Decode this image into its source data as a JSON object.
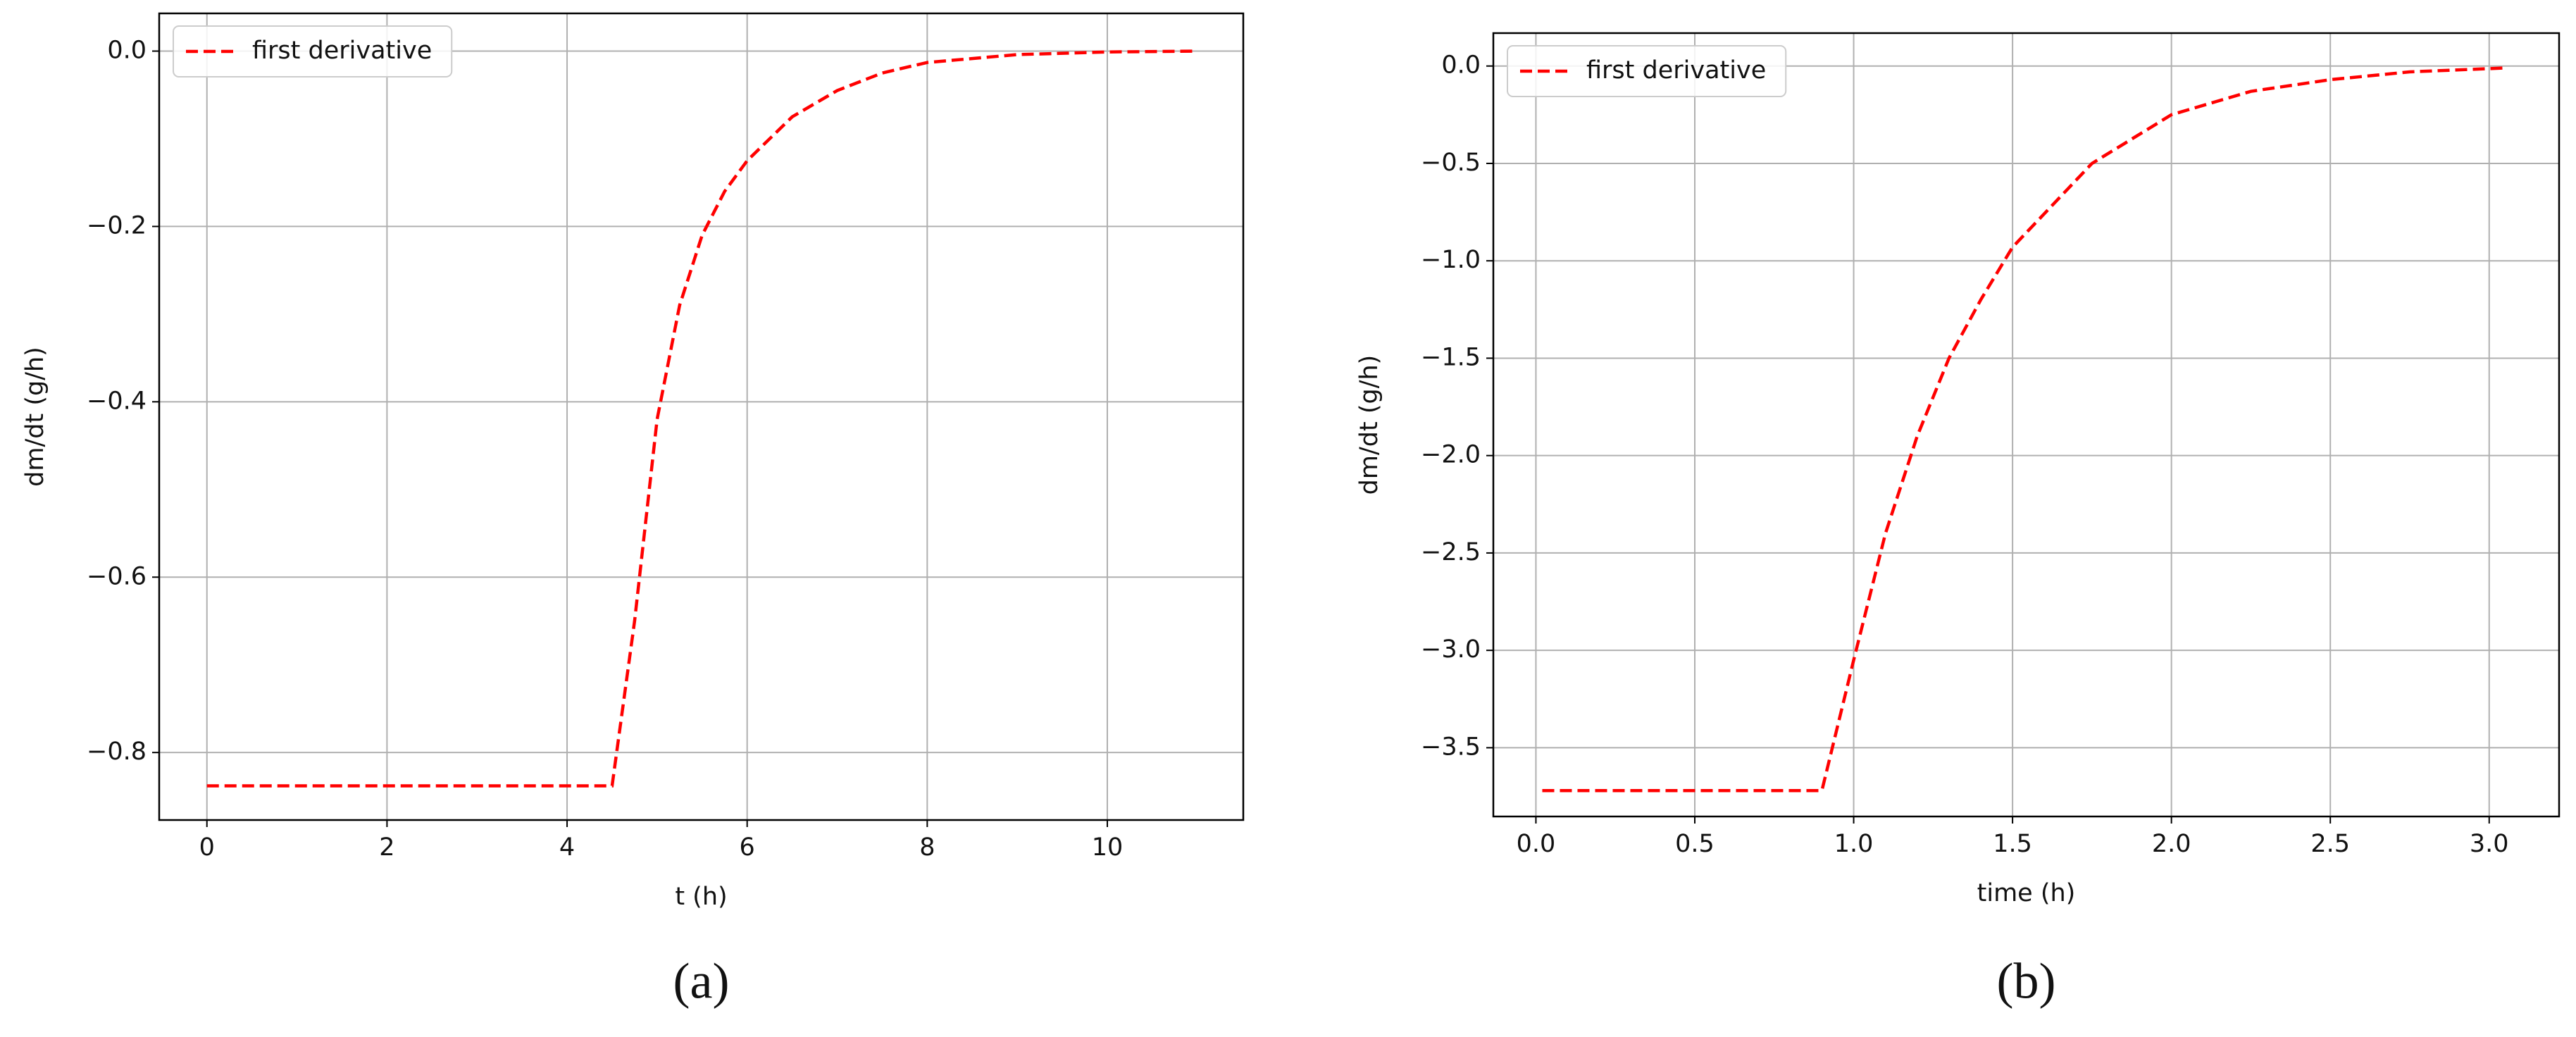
{
  "chart_data": [
    {
      "type": "line",
      "caption": "(a)",
      "xlabel": "t (h)",
      "ylabel": "dm/dt (g/h)",
      "x": [
        0,
        4.5,
        4.75,
        5.0,
        5.25,
        5.5,
        5.75,
        6.0,
        6.5,
        7.0,
        7.5,
        8.0,
        9.0,
        10.0,
        11.0
      ],
      "series": [
        {
          "name": "first derivative",
          "color": "#ff0000",
          "linestyle": "dashed",
          "values": [
            -0.838,
            -0.838,
            -0.65,
            -0.42,
            -0.29,
            -0.21,
            -0.16,
            -0.125,
            -0.075,
            -0.045,
            -0.025,
            -0.013,
            -0.004,
            -0.001,
            0
          ]
        }
      ],
      "xlim": [
        -0.53,
        11.51
      ],
      "ylim": [
        -0.877,
        0.043
      ],
      "xticks": [
        0,
        2,
        4,
        6,
        8,
        10
      ],
      "yticks": [
        {
          "value": 0,
          "label": "0.0"
        },
        {
          "value": -0.2,
          "label": "−0.2"
        },
        {
          "value": -0.4,
          "label": "−0.4"
        },
        {
          "value": -0.6,
          "label": "−0.6"
        },
        {
          "value": -0.8,
          "label": "−0.8"
        }
      ],
      "grid": true,
      "legend": "upper left"
    },
    {
      "type": "line",
      "caption": "(b)",
      "xlabel": "time (h)",
      "ylabel": "dm/dt (g/h)",
      "x": [
        0.02,
        0.9,
        1.0,
        1.1,
        1.2,
        1.3,
        1.4,
        1.5,
        1.75,
        2.0,
        2.25,
        2.5,
        2.75,
        3.05
      ],
      "series": [
        {
          "name": "first derivative",
          "color": "#ff0000",
          "linestyle": "dashed",
          "values": [
            -3.72,
            -3.72,
            -3.05,
            -2.4,
            -1.9,
            -1.5,
            -1.2,
            -0.93,
            -0.5,
            -0.25,
            -0.13,
            -0.07,
            -0.03,
            -0.01
          ]
        }
      ],
      "xlim": [
        -0.134,
        3.22
      ],
      "ylim": [
        -3.853,
        0.169
      ],
      "xticks": [
        {
          "value": 0,
          "label": "0.0"
        },
        0.5,
        {
          "value": 1,
          "label": "1.0"
        },
        1.5,
        {
          "value": 2,
          "label": "2.0"
        },
        2.5,
        {
          "value": 3,
          "label": "3.0"
        }
      ],
      "yticks": [
        {
          "value": 0,
          "label": "0.0"
        },
        {
          "value": -0.5,
          "label": "−0.5"
        },
        {
          "value": -1,
          "label": "−1.0"
        },
        {
          "value": -1.5,
          "label": "−1.5"
        },
        {
          "value": -2,
          "label": "−2.0"
        },
        {
          "value": -2.5,
          "label": "−2.5"
        },
        {
          "value": -3,
          "label": "−3.0"
        },
        {
          "value": -3.5,
          "label": "−3.5"
        }
      ],
      "grid": true,
      "legend": "upper left"
    }
  ]
}
